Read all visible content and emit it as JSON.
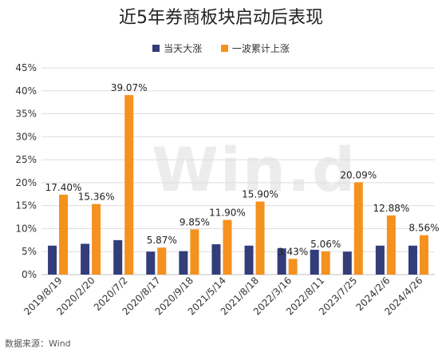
{
  "chart_data": {
    "type": "bar",
    "title": "近5年券商板块启动后表现",
    "categories": [
      "2019/8/19",
      "2020/2/20",
      "2020/7/2",
      "2020/8/17",
      "2020/9/18",
      "2021/5/14",
      "2021/8/18",
      "2022/3/16",
      "2022/8/11",
      "2023/7/25",
      "2024/2/6",
      "2024/4/26"
    ],
    "series": [
      {
        "name": "当天大涨",
        "color": "#323d7a",
        "values": [
          6.3,
          6.7,
          7.5,
          5.0,
          5.1,
          6.6,
          6.3,
          5.7,
          5.4,
          5.0,
          6.3,
          6.3
        ]
      },
      {
        "name": "一波累计上涨",
        "color": "#f5911e",
        "values": [
          17.4,
          15.36,
          39.07,
          5.87,
          9.85,
          11.9,
          15.9,
          3.43,
          5.06,
          20.09,
          12.88,
          8.56
        ],
        "labels": [
          "17.40%",
          "15.36%",
          "39.07%",
          "5.87%",
          "9.85%",
          "11.90%",
          "15.90%",
          "3.43%",
          "5.06%",
          "20.09%",
          "12.88%",
          "8.56%"
        ]
      }
    ],
    "yticks": [
      "0%",
      "5%",
      "10%",
      "15%",
      "20%",
      "25%",
      "30%",
      "35%",
      "40%",
      "45%"
    ],
    "ylim": [
      0,
      45
    ],
    "grid": true,
    "legend_position": "top",
    "xlabel": "",
    "ylabel": ""
  },
  "source": "数据来源：Wind",
  "watermark": "Win.d"
}
